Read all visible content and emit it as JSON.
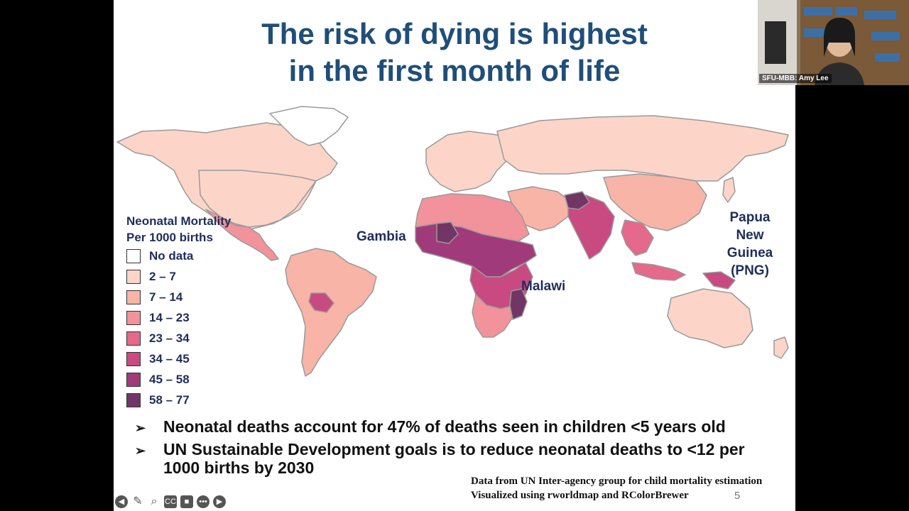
{
  "slide": {
    "title_line1": "The risk of dying is highest",
    "title_line2": "in the first month of life",
    "legend": {
      "title_line1": "Neonatal Mortality",
      "title_line2": "Per 1000 births",
      "items": [
        {
          "label": "No data",
          "color": "#ffffff"
        },
        {
          "label": "2 – 7",
          "color": "#fcd5c8"
        },
        {
          "label": "7 – 14",
          "color": "#f8b4a6"
        },
        {
          "label": "14 – 23",
          "color": "#f2929b"
        },
        {
          "label": "23 – 34",
          "color": "#e4698a"
        },
        {
          "label": "34 – 45",
          "color": "#c84a80"
        },
        {
          "label": "45 – 58",
          "color": "#a13a7a"
        },
        {
          "label": "58 – 77",
          "color": "#713665"
        }
      ]
    },
    "labels": {
      "gambia": "Gambia",
      "malawi": "Malawi",
      "png": [
        "Papua",
        "New",
        "Guinea",
        "(PNG)"
      ]
    },
    "bullets": [
      "Neonatal deaths account for 47% of deaths seen in children <5 years old",
      "UN Sustainable Development goals is to reduce neonatal deaths to <12 per 1000 births by 2030"
    ],
    "bullet_marker": "➢",
    "credits_line1": "Data from UN Inter-agency group for child mortality estimation",
    "credits_line2": "Visualized using rworldmap and RColorBrewer",
    "page_number": "5"
  },
  "video": {
    "participant_name": "SFU-MBB: Amy Lee"
  },
  "toolbar": {
    "icons": [
      "back-icon",
      "pen-icon",
      "zoom-icon",
      "captions-icon",
      "camera-icon",
      "more-icon",
      "forward-icon"
    ]
  }
}
